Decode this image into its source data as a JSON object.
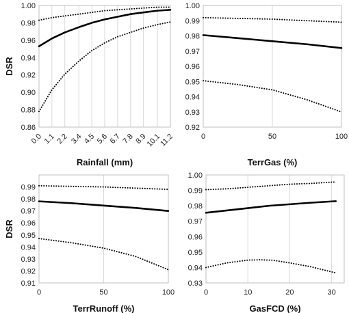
{
  "chart_data": [
    {
      "type": "line",
      "panel": "top-left",
      "xlabel": "Rainfall (mm)",
      "ylabel": "DSR",
      "xlim": [
        0,
        11.2
      ],
      "ylim": [
        0.86,
        1.0
      ],
      "yticks": [
        0.86,
        0.88,
        0.9,
        0.92,
        0.94,
        0.96,
        0.98,
        1.0
      ],
      "ytick_labels": [
        "0.86",
        "0.88",
        "0.90",
        "0.92",
        "0.94",
        "0.96",
        "0.98",
        "1.00"
      ],
      "xticks": [
        0.0,
        1.1,
        2.2,
        3.4,
        4.5,
        5.6,
        6.7,
        7.8,
        8.9,
        10.1,
        11.2
      ],
      "xtick_labels": [
        "0.0",
        "1.1",
        "2.2",
        "3.4",
        "4.5",
        "5.6",
        "6.7",
        "7.8",
        "8.9",
        "10.1",
        "11.2"
      ],
      "xtick_rotation": -45,
      "grid": "vertical",
      "series": [
        {
          "style": "solid",
          "x": [
            0.0,
            1.1,
            2.2,
            3.4,
            4.5,
            5.6,
            6.7,
            7.8,
            8.9,
            10.1,
            11.2
          ],
          "values": [
            0.953,
            0.962,
            0.969,
            0.975,
            0.98,
            0.984,
            0.987,
            0.99,
            0.992,
            0.994,
            0.995
          ]
        },
        {
          "style": "dotted",
          "x": [
            0.0,
            1.1,
            2.2,
            3.4,
            4.5,
            5.6,
            6.7,
            7.8,
            8.9,
            10.1,
            11.2
          ],
          "values": [
            0.983,
            0.986,
            0.988,
            0.99,
            0.992,
            0.994,
            0.995,
            0.996,
            0.997,
            0.998,
            0.998
          ]
        },
        {
          "style": "dotted",
          "x": [
            0.0,
            1.1,
            2.2,
            3.4,
            4.5,
            5.6,
            6.7,
            7.8,
            8.9,
            10.1,
            11.2
          ],
          "values": [
            0.878,
            0.903,
            0.921,
            0.936,
            0.948,
            0.957,
            0.964,
            0.969,
            0.974,
            0.978,
            0.981
          ]
        }
      ]
    },
    {
      "type": "line",
      "panel": "top-right",
      "xlabel": "TerrGas (%)",
      "ylabel": "",
      "xlim": [
        0,
        100
      ],
      "ylim": [
        0.92,
        1.0
      ],
      "yticks": [
        0.92,
        0.93,
        0.94,
        0.95,
        0.96,
        0.97,
        0.98,
        0.99,
        1.0
      ],
      "ytick_labels": [
        "0.92",
        "0.93",
        "0.94",
        "0.95",
        "0.96",
        "0.97",
        "0.98",
        "0.99",
        "1.00"
      ],
      "xticks": [
        0,
        50,
        100
      ],
      "xtick_labels": [
        "0",
        "50",
        "100"
      ],
      "xtick_rotation": 0,
      "grid": "vertical",
      "series": [
        {
          "style": "solid",
          "x": [
            0,
            25,
            50,
            75,
            100
          ],
          "values": [
            0.9805,
            0.9785,
            0.9765,
            0.9745,
            0.972
          ]
        },
        {
          "style": "dotted",
          "x": [
            0,
            25,
            50,
            75,
            100
          ],
          "values": [
            0.992,
            0.9915,
            0.991,
            0.99,
            0.989
          ]
        },
        {
          "style": "dotted",
          "x": [
            0,
            25,
            50,
            75,
            100
          ],
          "values": [
            0.9505,
            0.948,
            0.9445,
            0.938,
            0.93
          ]
        }
      ]
    },
    {
      "type": "line",
      "panel": "bottom-left",
      "xlabel": "TerrRunoff (%)",
      "ylabel": "DSR",
      "xlim": [
        0,
        100
      ],
      "ylim": [
        0.91,
        1.0
      ],
      "yticks": [
        0.91,
        0.92,
        0.93,
        0.94,
        0.95,
        0.96,
        0.97,
        0.98,
        0.99
      ],
      "ytick_labels": [
        "0.91",
        "0.92",
        "0.93",
        "0.94",
        "0.95",
        "0.96",
        "0.97",
        "0.98",
        "0.99"
      ],
      "xticks": [
        0,
        50,
        100
      ],
      "xtick_labels": [
        "0",
        "50",
        "100"
      ],
      "xtick_rotation": 0,
      "grid": "vertical",
      "series": [
        {
          "style": "solid",
          "x": [
            0,
            25,
            50,
            75,
            100
          ],
          "values": [
            0.978,
            0.9765,
            0.9745,
            0.9725,
            0.97
          ]
        },
        {
          "style": "dotted",
          "x": [
            0,
            25,
            50,
            75,
            100
          ],
          "values": [
            0.991,
            0.9905,
            0.99,
            0.989,
            0.988
          ]
        },
        {
          "style": "dotted",
          "x": [
            0,
            25,
            50,
            75,
            100
          ],
          "values": [
            0.947,
            0.9435,
            0.939,
            0.932,
            0.921
          ]
        }
      ]
    },
    {
      "type": "line",
      "panel": "bottom-right",
      "xlabel": "GasFCD (%)",
      "ylabel": "",
      "xlim": [
        0,
        33
      ],
      "ylim": [
        0.93,
        1.0
      ],
      "yticks": [
        0.93,
        0.94,
        0.95,
        0.96,
        0.97,
        0.98,
        0.99,
        1.0
      ],
      "ytick_labels": [
        "0.93",
        "0.94",
        "0.95",
        "0.96",
        "0.97",
        "0.98",
        "0.99",
        "1.00"
      ],
      "xticks": [
        0,
        10,
        20,
        30
      ],
      "xtick_labels": [
        "0",
        "10",
        "20",
        "30"
      ],
      "xtick_rotation": 0,
      "grid": "vertical",
      "series": [
        {
          "style": "solid",
          "x": [
            0,
            5,
            10,
            15,
            20,
            25,
            31
          ],
          "values": [
            0.9755,
            0.977,
            0.9785,
            0.98,
            0.981,
            0.982,
            0.983
          ]
        },
        {
          "style": "dotted",
          "x": [
            0,
            5,
            10,
            15,
            20,
            25,
            31
          ],
          "values": [
            0.9905,
            0.991,
            0.992,
            0.993,
            0.994,
            0.9945,
            0.9955
          ]
        },
        {
          "style": "dotted",
          "x": [
            0,
            5,
            10,
            13,
            16,
            20,
            25,
            31
          ],
          "values": [
            0.94,
            0.943,
            0.9448,
            0.945,
            0.9447,
            0.943,
            0.9405,
            0.9365
          ]
        }
      ]
    }
  ]
}
